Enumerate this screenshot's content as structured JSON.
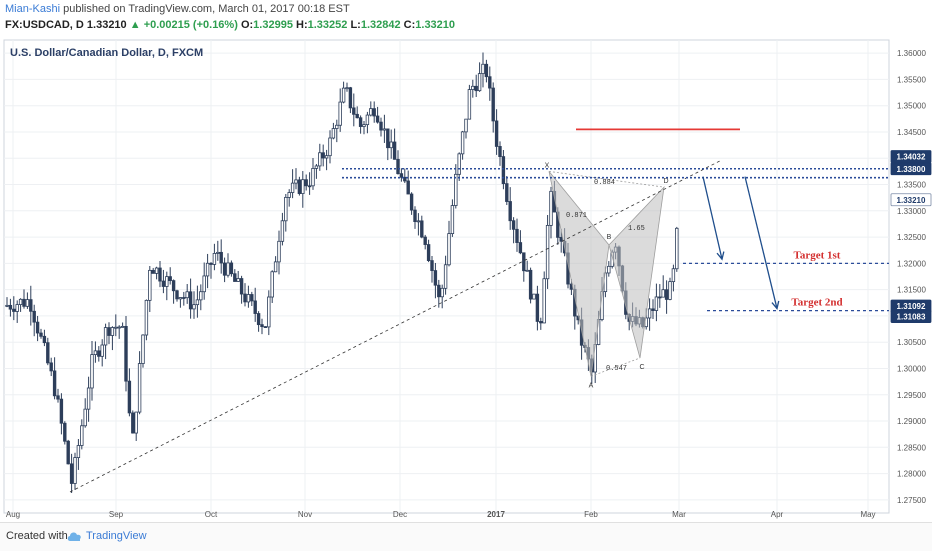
{
  "header": {
    "author": "Mian-Kashi",
    "published": "published on TradingView.com, March 01, 2017 00:18 EST",
    "symbol": "FX:USDCAD, D",
    "last": "1.33210",
    "change": "+0.00215 (+0.16%)",
    "open_label": "O:",
    "open": "1.32995",
    "high_label": "H:",
    "high": "1.33252",
    "low_label": "L:",
    "low": "1.32842",
    "close_label": "C:",
    "close": "1.33210"
  },
  "footer": {
    "created_with": "Created with",
    "brand": "TradingView",
    "brand_icon": "tradingview-cloud-icon"
  },
  "chart_data": {
    "type": "candlestick",
    "title": "U.S. Dollar/Canadian Dollar, D, FXCM",
    "ylim": [
      1.2725,
      1.3625
    ],
    "y_ticks": [
      "1.27500",
      "1.28000",
      "1.28500",
      "1.29000",
      "1.29500",
      "1.30000",
      "1.30500",
      "1.31000",
      "1.31500",
      "1.32000",
      "1.32500",
      "1.33000",
      "1.33500",
      "1.34000",
      "1.34500",
      "1.35000",
      "1.35500",
      "1.36000"
    ],
    "x_ticks": [
      "Aug",
      "Sep",
      "Oct",
      "Nov",
      "Dec",
      "2017",
      "Feb",
      "Mar",
      "Apr",
      "May"
    ],
    "price_tags": [
      {
        "value": 1.34032,
        "label": "1.34032",
        "style": "dark"
      },
      {
        "value": 1.338,
        "label": "1.33800",
        "style": "dark"
      },
      {
        "value": 1.3321,
        "label": "1.33210",
        "style": "light"
      },
      {
        "value": 1.31092,
        "label": "1.31092",
        "style": "dark"
      },
      {
        "value": 1.31083,
        "label": "1.31083",
        "style": "dark"
      }
    ],
    "targets": [
      {
        "label": "Target 1st",
        "value": 1.32
      },
      {
        "label": "Target 2nd",
        "value": 1.311
      }
    ],
    "pattern_labels": {
      "X": "X",
      "A": "A",
      "B": "B",
      "C": "C",
      "D": "D"
    },
    "ratios": {
      "xab": "0.871",
      "abc": "0.547",
      "bcd": "1.65",
      "xad": "0.884"
    },
    "resistance_line": 1.3455,
    "support_zone": [
      1.338,
      1.3363
    ],
    "colors": {
      "up": "#ffffff",
      "down": "#2d3e5a",
      "border": "#2d3e5a",
      "red_line": "#e53935",
      "blue_dash": "#2b4c9a",
      "target_text": "#d32f2f"
    }
  }
}
